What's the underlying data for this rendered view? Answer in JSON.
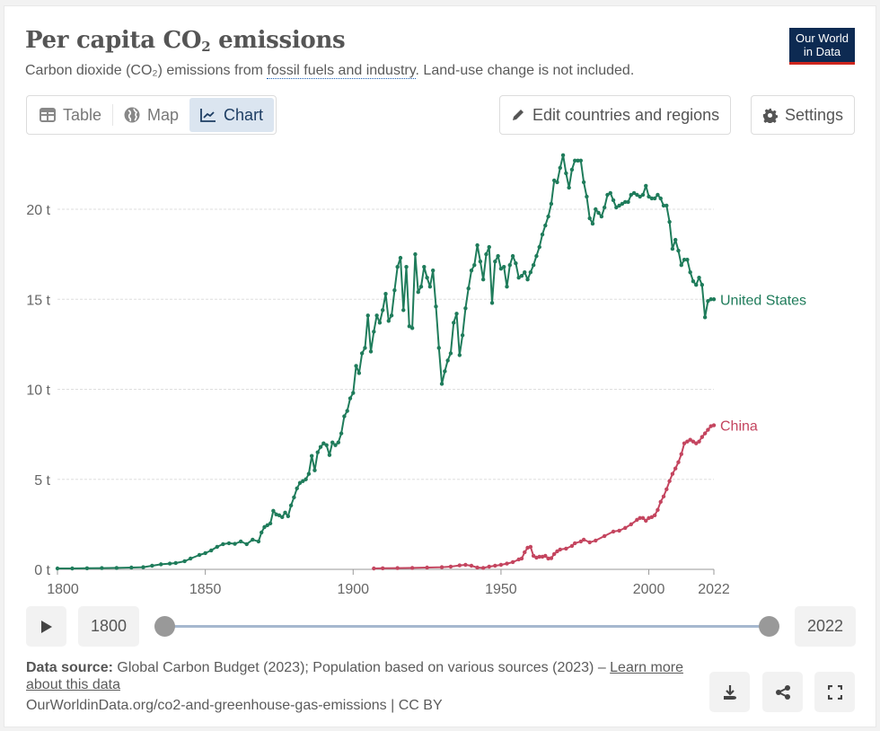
{
  "header": {
    "title_main": "Per capita CO",
    "title_sub": "2",
    "title_end": " emissions",
    "subtitle_pre": "Carbon dioxide (CO₂) emissions from ",
    "subtitle_link": "fossil fuels and industry",
    "subtitle_post": ". Land-use change is not included.",
    "logo_line1": "Our World",
    "logo_line2": "in Data"
  },
  "tabs": [
    {
      "label": "Table",
      "icon": "table-icon",
      "active": false
    },
    {
      "label": "Map",
      "icon": "globe-icon",
      "active": false
    },
    {
      "label": "Chart",
      "icon": "line-chart-icon",
      "active": true
    }
  ],
  "buttons": {
    "edit": "Edit countries and regions",
    "settings": "Settings"
  },
  "timeline": {
    "start_year": "1800",
    "end_year": "2022",
    "range_start_fraction": 0,
    "range_end_fraction": 1
  },
  "footer": {
    "source_label": "Data source:",
    "source_text": " Global Carbon Budget (2023); Population based on various sources (2023) – ",
    "learn_more": "Learn more about this data",
    "url": "OurWorldinData.org/co2-and-greenhouse-gas-emissions | CC BY"
  },
  "colors": {
    "us": "#1f7c5b",
    "china": "#c4455f",
    "grid": "#dddddd",
    "axis": "#999999"
  },
  "chart_data": {
    "type": "line",
    "title": "Per capita CO₂ emissions",
    "xlabel": "",
    "ylabel": "",
    "xlim": [
      1800,
      2022
    ],
    "ylim": [
      0,
      23
    ],
    "x_ticks": [
      1800,
      1850,
      1900,
      1950,
      2000,
      2022
    ],
    "y_ticks": [
      0,
      5,
      10,
      15,
      20
    ],
    "y_tick_labels": [
      "0 t",
      "5 t",
      "10 t",
      "15 t",
      "20 t"
    ],
    "grid": "horizontal-dashed",
    "legend": "inline-right",
    "series": [
      {
        "name": "United States",
        "color": "#1f7c5b",
        "points": [
          [
            1800,
            0.05
          ],
          [
            1805,
            0.05
          ],
          [
            1810,
            0.06
          ],
          [
            1815,
            0.07
          ],
          [
            1820,
            0.08
          ],
          [
            1825,
            0.1
          ],
          [
            1829,
            0.12
          ],
          [
            1832,
            0.2
          ],
          [
            1835,
            0.28
          ],
          [
            1838,
            0.32
          ],
          [
            1840,
            0.35
          ],
          [
            1843,
            0.45
          ],
          [
            1845,
            0.6
          ],
          [
            1848,
            0.8
          ],
          [
            1850,
            0.9
          ],
          [
            1852,
            1.05
          ],
          [
            1854,
            1.25
          ],
          [
            1856,
            1.4
          ],
          [
            1858,
            1.45
          ],
          [
            1860,
            1.42
          ],
          [
            1862,
            1.55
          ],
          [
            1864,
            1.4
          ],
          [
            1866,
            1.65
          ],
          [
            1868,
            1.55
          ],
          [
            1869,
            2.05
          ],
          [
            1870,
            2.35
          ],
          [
            1871,
            2.45
          ],
          [
            1872,
            2.55
          ],
          [
            1873,
            3.25
          ],
          [
            1874,
            3.05
          ],
          [
            1875,
            3.0
          ],
          [
            1876,
            2.9
          ],
          [
            1877,
            3.15
          ],
          [
            1878,
            2.95
          ],
          [
            1879,
            3.55
          ],
          [
            1880,
            4.0
          ],
          [
            1881,
            4.5
          ],
          [
            1882,
            4.8
          ],
          [
            1883,
            4.9
          ],
          [
            1884,
            5.0
          ],
          [
            1885,
            5.3
          ],
          [
            1886,
            6.3
          ],
          [
            1887,
            5.5
          ],
          [
            1888,
            6.5
          ],
          [
            1889,
            6.8
          ],
          [
            1890,
            7.0
          ],
          [
            1891,
            6.9
          ],
          [
            1892,
            6.35
          ],
          [
            1893,
            7.05
          ],
          [
            1894,
            6.9
          ],
          [
            1895,
            7.05
          ],
          [
            1896,
            7.55
          ],
          [
            1897,
            8.5
          ],
          [
            1898,
            8.8
          ],
          [
            1899,
            9.5
          ],
          [
            1900,
            9.8
          ],
          [
            1901,
            11.3
          ],
          [
            1902,
            10.9
          ],
          [
            1903,
            12.0
          ],
          [
            1904,
            12.3
          ],
          [
            1905,
            14.1
          ],
          [
            1906,
            12.1
          ],
          [
            1907,
            13.2
          ],
          [
            1908,
            14.1
          ],
          [
            1909,
            13.7
          ],
          [
            1910,
            14.4
          ],
          [
            1911,
            15.3
          ],
          [
            1912,
            13.8
          ],
          [
            1913,
            14.1
          ],
          [
            1914,
            15.5
          ],
          [
            1915,
            16.8
          ],
          [
            1916,
            17.3
          ],
          [
            1917,
            14.4
          ],
          [
            1918,
            16.8
          ],
          [
            1919,
            13.5
          ],
          [
            1920,
            13.4
          ],
          [
            1921,
            17.5
          ],
          [
            1922,
            15.4
          ],
          [
            1923,
            15.7
          ],
          [
            1924,
            16.8
          ],
          [
            1925,
            16.2
          ],
          [
            1926,
            15.7
          ],
          [
            1927,
            16.6
          ],
          [
            1928,
            14.6
          ],
          [
            1929,
            12.3
          ],
          [
            1930,
            10.3
          ],
          [
            1931,
            11.0
          ],
          [
            1932,
            11.6
          ],
          [
            1933,
            12.0
          ],
          [
            1934,
            13.7
          ],
          [
            1935,
            14.2
          ],
          [
            1936,
            11.9
          ],
          [
            1937,
            13.0
          ],
          [
            1938,
            14.5
          ],
          [
            1939,
            15.6
          ],
          [
            1940,
            16.6
          ],
          [
            1941,
            16.9
          ],
          [
            1942,
            18.0
          ],
          [
            1943,
            17.1
          ],
          [
            1944,
            16.1
          ],
          [
            1945,
            17.5
          ],
          [
            1946,
            17.9
          ],
          [
            1947,
            14.8
          ],
          [
            1948,
            17.1
          ],
          [
            1949,
            17.4
          ],
          [
            1950,
            16.7
          ],
          [
            1951,
            16.8
          ],
          [
            1952,
            15.7
          ],
          [
            1953,
            16.9
          ],
          [
            1954,
            17.4
          ],
          [
            1955,
            17.0
          ],
          [
            1956,
            16.2
          ],
          [
            1957,
            16.3
          ],
          [
            1958,
            16.5
          ],
          [
            1959,
            16.1
          ],
          [
            1960,
            16.5
          ],
          [
            1961,
            16.9
          ],
          [
            1962,
            17.4
          ],
          [
            1963,
            17.9
          ],
          [
            1964,
            18.6
          ],
          [
            1965,
            19.1
          ],
          [
            1966,
            19.6
          ],
          [
            1967,
            20.3
          ],
          [
            1968,
            21.6
          ],
          [
            1969,
            21.5
          ],
          [
            1970,
            22.3
          ],
          [
            1971,
            23.0
          ],
          [
            1972,
            22.0
          ],
          [
            1973,
            21.2
          ],
          [
            1974,
            22.2
          ],
          [
            1975,
            22.7
          ],
          [
            1976,
            22.7
          ],
          [
            1977,
            22.7
          ],
          [
            1978,
            21.5
          ],
          [
            1979,
            20.7
          ],
          [
            1980,
            19.5
          ],
          [
            1981,
            19.2
          ],
          [
            1982,
            20.0
          ],
          [
            1983,
            19.8
          ],
          [
            1984,
            19.6
          ],
          [
            1985,
            20.1
          ],
          [
            1986,
            20.8
          ],
          [
            1987,
            20.9
          ],
          [
            1988,
            20.5
          ],
          [
            1989,
            20.1
          ],
          [
            1990,
            20.2
          ],
          [
            1991,
            20.3
          ],
          [
            1992,
            20.4
          ],
          [
            1993,
            20.4
          ],
          [
            1994,
            20.8
          ],
          [
            1995,
            20.9
          ],
          [
            1996,
            20.8
          ],
          [
            1997,
            20.7
          ],
          [
            1998,
            20.8
          ],
          [
            1999,
            21.3
          ],
          [
            2000,
            20.7
          ],
          [
            2001,
            20.6
          ],
          [
            2002,
            20.6
          ],
          [
            2003,
            20.8
          ],
          [
            2004,
            20.6
          ],
          [
            2005,
            20.2
          ],
          [
            2006,
            20.2
          ],
          [
            2007,
            19.3
          ],
          [
            2008,
            17.8
          ],
          [
            2009,
            18.3
          ],
          [
            2010,
            17.7
          ],
          [
            2011,
            16.9
          ],
          [
            2012,
            17.2
          ],
          [
            2013,
            17.2
          ],
          [
            2014,
            16.5
          ],
          [
            2015,
            16.0
          ],
          [
            2016,
            15.8
          ],
          [
            2017,
            16.2
          ],
          [
            2018,
            15.8
          ],
          [
            2019,
            14.0
          ],
          [
            2020,
            14.9
          ],
          [
            2021,
            15.0
          ],
          [
            2022,
            15.0
          ]
        ]
      },
      {
        "name": "China",
        "color": "#c4455f",
        "points": [
          [
            1907,
            0.05
          ],
          [
            1910,
            0.06
          ],
          [
            1915,
            0.07
          ],
          [
            1920,
            0.08
          ],
          [
            1925,
            0.1
          ],
          [
            1930,
            0.12
          ],
          [
            1933,
            0.15
          ],
          [
            1936,
            0.22
          ],
          [
            1938,
            0.25
          ],
          [
            1940,
            0.2
          ],
          [
            1942,
            0.1
          ],
          [
            1944,
            0.08
          ],
          [
            1946,
            0.15
          ],
          [
            1948,
            0.2
          ],
          [
            1950,
            0.25
          ],
          [
            1952,
            0.32
          ],
          [
            1954,
            0.4
          ],
          [
            1956,
            0.55
          ],
          [
            1957,
            0.6
          ],
          [
            1958,
            0.95
          ],
          [
            1959,
            1.2
          ],
          [
            1960,
            1.25
          ],
          [
            1961,
            0.75
          ],
          [
            1962,
            0.65
          ],
          [
            1963,
            0.7
          ],
          [
            1964,
            0.7
          ],
          [
            1965,
            0.75
          ],
          [
            1966,
            0.6
          ],
          [
            1967,
            0.62
          ],
          [
            1968,
            0.85
          ],
          [
            1969,
            1.0
          ],
          [
            1970,
            1.1
          ],
          [
            1972,
            1.15
          ],
          [
            1974,
            1.3
          ],
          [
            1975,
            1.45
          ],
          [
            1977,
            1.55
          ],
          [
            1978,
            1.65
          ],
          [
            1980,
            1.5
          ],
          [
            1982,
            1.6
          ],
          [
            1985,
            1.85
          ],
          [
            1988,
            2.1
          ],
          [
            1990,
            2.15
          ],
          [
            1992,
            2.3
          ],
          [
            1994,
            2.5
          ],
          [
            1996,
            2.75
          ],
          [
            1997,
            2.85
          ],
          [
            1998,
            2.85
          ],
          [
            1999,
            2.7
          ],
          [
            2000,
            2.85
          ],
          [
            2001,
            2.9
          ],
          [
            2002,
            3.0
          ],
          [
            2003,
            3.3
          ],
          [
            2004,
            3.75
          ],
          [
            2005,
            4.05
          ],
          [
            2006,
            4.45
          ],
          [
            2007,
            4.9
          ],
          [
            2008,
            5.3
          ],
          [
            2009,
            5.6
          ],
          [
            2010,
            5.95
          ],
          [
            2011,
            6.4
          ],
          [
            2012,
            7.0
          ],
          [
            2013,
            7.1
          ],
          [
            2014,
            7.2
          ],
          [
            2015,
            7.1
          ],
          [
            2016,
            7.0
          ],
          [
            2017,
            7.1
          ],
          [
            2018,
            7.35
          ],
          [
            2019,
            7.55
          ],
          [
            2020,
            7.75
          ],
          [
            2021,
            7.95
          ],
          [
            2022,
            8.0
          ]
        ]
      }
    ]
  }
}
